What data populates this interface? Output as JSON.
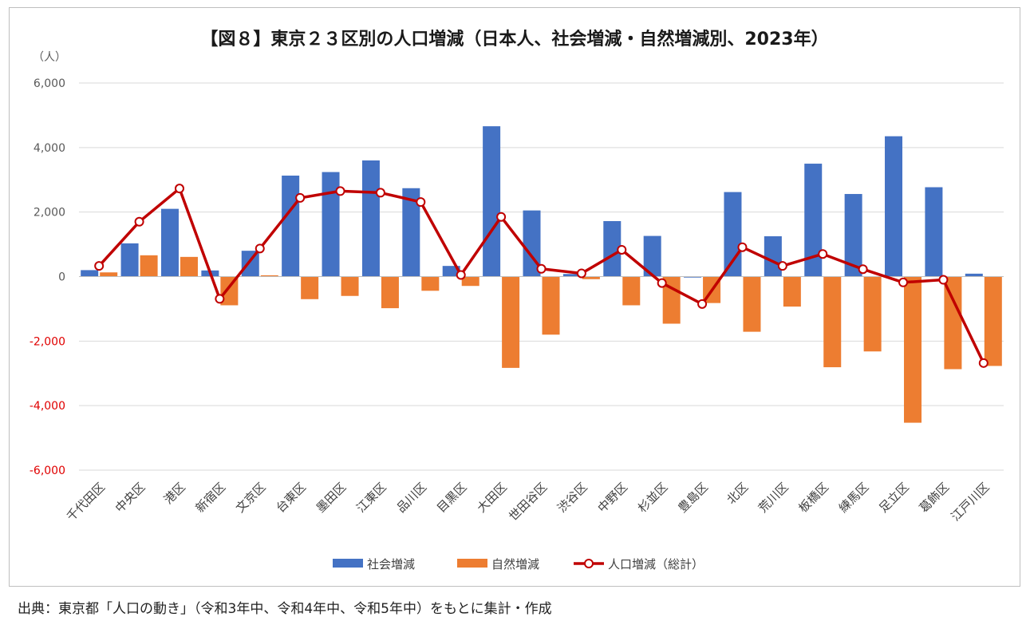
{
  "chart_data": {
    "type": "bar",
    "title": "【図８】東京２３区別の人口増減（日本人、社会増減・自然増減別、2023年）",
    "ylabel": "（人）",
    "xlabel": "",
    "ylim": [
      -6000,
      6000
    ],
    "yticks": [
      6000,
      4000,
      2000,
      0,
      -2000,
      -4000,
      -6000
    ],
    "ytick_labels": [
      "6,000",
      "4,000",
      "2,000",
      "0",
      "-2,000",
      "-4,000",
      "-6,000"
    ],
    "grid": true,
    "legend_position": "bottom",
    "categories": [
      "千代田区",
      "中央区",
      "港区",
      "新宿区",
      "文京区",
      "台東区",
      "墨田区",
      "江東区",
      "品川区",
      "目黒区",
      "大田区",
      "世田谷区",
      "渋谷区",
      "中野区",
      "杉並区",
      "豊島区",
      "北区",
      "荒川区",
      "板橋区",
      "練馬区",
      "足立区",
      "葛飾区",
      "江戸川区"
    ],
    "series": [
      {
        "name": "社会増減",
        "kind": "bar",
        "color": "#4472C4",
        "values": [
          200,
          1030,
          2100,
          190,
          800,
          3130,
          3240,
          3600,
          2740,
          330,
          4660,
          2050,
          80,
          1720,
          1260,
          -30,
          2620,
          1250,
          3500,
          2560,
          4350,
          2770,
          90
        ]
      },
      {
        "name": "自然増減",
        "kind": "bar",
        "color": "#ED7D31",
        "values": [
          130,
          660,
          610,
          -890,
          40,
          -700,
          -600,
          -980,
          -440,
          -290,
          -2830,
          -1800,
          -80,
          -890,
          -1460,
          -820,
          -1710,
          -930,
          -2810,
          -2320,
          -4530,
          -2870,
          -2770
        ]
      },
      {
        "name": "人口増減（総計）",
        "kind": "line",
        "color": "#C00000",
        "values": [
          330,
          1700,
          2730,
          -690,
          870,
          2440,
          2650,
          2600,
          2310,
          50,
          1850,
          240,
          100,
          830,
          -200,
          -850,
          910,
          330,
          700,
          230,
          -180,
          -100,
          -2680
        ]
      }
    ]
  },
  "source": "出典：東京都「人口の動き」（令和3年中、令和4年中、令和5年中）をもとに集計・作成"
}
